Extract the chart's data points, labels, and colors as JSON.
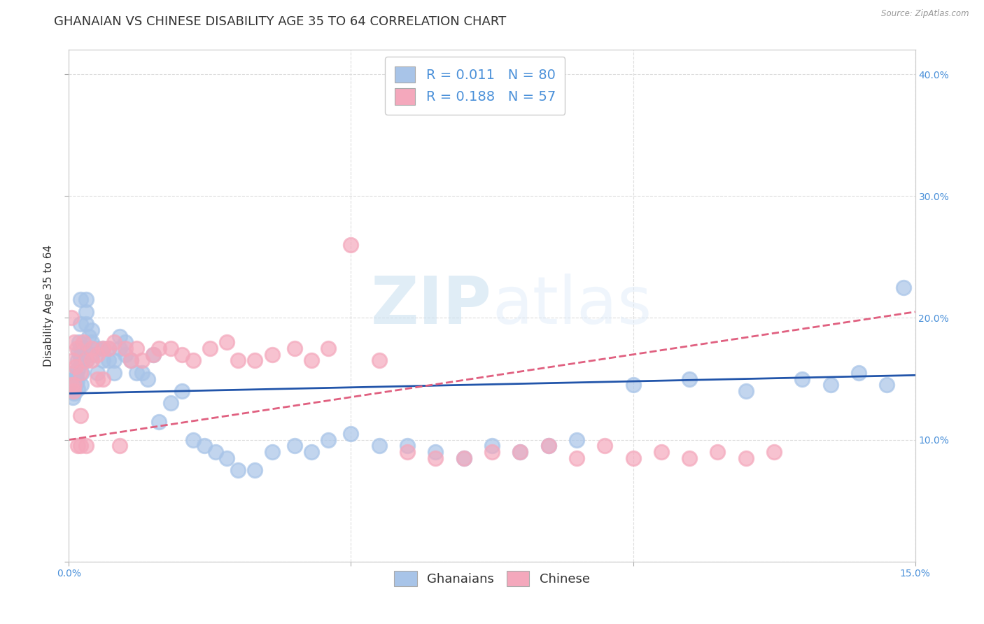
{
  "title": "GHANAIAN VS CHINESE DISABILITY AGE 35 TO 64 CORRELATION CHART",
  "source": "Source: ZipAtlas.com",
  "ylabel": "Disability Age 35 to 64",
  "xlim": [
    0.0,
    0.15
  ],
  "ylim": [
    0.0,
    0.42
  ],
  "ghanaian_color": "#a8c4e8",
  "chinese_color": "#f4a8bc",
  "trend_ghanaian_color": "#2255aa",
  "trend_chinese_color": "#e06080",
  "R_ghanaian": 0.011,
  "N_ghanaian": 80,
  "R_chinese": 0.188,
  "N_chinese": 57,
  "watermark_zip": "ZIP",
  "watermark_atlas": "atlas",
  "background_color": "#ffffff",
  "grid_color": "#dddddd",
  "title_fontsize": 13,
  "axis_label_fontsize": 11,
  "tick_fontsize": 10,
  "legend_fontsize": 14,
  "ghanaian_x": [
    0.0005,
    0.0006,
    0.0007,
    0.0008,
    0.0009,
    0.001,
    0.001,
    0.001,
    0.001,
    0.0012,
    0.0013,
    0.0014,
    0.0015,
    0.0015,
    0.0016,
    0.0017,
    0.0018,
    0.002,
    0.002,
    0.002,
    0.002,
    0.0022,
    0.0023,
    0.0024,
    0.0025,
    0.003,
    0.003,
    0.003,
    0.0032,
    0.0035,
    0.004,
    0.004,
    0.004,
    0.005,
    0.005,
    0.006,
    0.006,
    0.007,
    0.007,
    0.008,
    0.008,
    0.009,
    0.009,
    0.01,
    0.01,
    0.011,
    0.012,
    0.013,
    0.014,
    0.015,
    0.016,
    0.018,
    0.02,
    0.022,
    0.024,
    0.026,
    0.028,
    0.03,
    0.033,
    0.036,
    0.04,
    0.043,
    0.046,
    0.05,
    0.055,
    0.06,
    0.065,
    0.07,
    0.075,
    0.08,
    0.085,
    0.09,
    0.1,
    0.11,
    0.12,
    0.13,
    0.135,
    0.14,
    0.145,
    0.148
  ],
  "ghanaian_y": [
    0.14,
    0.145,
    0.135,
    0.14,
    0.15,
    0.142,
    0.138,
    0.148,
    0.155,
    0.145,
    0.152,
    0.148,
    0.142,
    0.158,
    0.165,
    0.172,
    0.18,
    0.175,
    0.168,
    0.195,
    0.215,
    0.145,
    0.155,
    0.165,
    0.175,
    0.195,
    0.205,
    0.215,
    0.165,
    0.185,
    0.17,
    0.18,
    0.19,
    0.155,
    0.175,
    0.165,
    0.175,
    0.175,
    0.165,
    0.155,
    0.165,
    0.175,
    0.185,
    0.17,
    0.18,
    0.165,
    0.155,
    0.155,
    0.15,
    0.17,
    0.115,
    0.13,
    0.14,
    0.1,
    0.095,
    0.09,
    0.085,
    0.075,
    0.075,
    0.09,
    0.095,
    0.09,
    0.1,
    0.105,
    0.095,
    0.095,
    0.09,
    0.085,
    0.095,
    0.09,
    0.095,
    0.1,
    0.145,
    0.15,
    0.14,
    0.15,
    0.145,
    0.155,
    0.145,
    0.225
  ],
  "chinese_x": [
    0.0004,
    0.0005,
    0.0007,
    0.0008,
    0.001,
    0.001,
    0.0012,
    0.0014,
    0.0016,
    0.002,
    0.002,
    0.002,
    0.0025,
    0.003,
    0.003,
    0.004,
    0.004,
    0.005,
    0.005,
    0.006,
    0.006,
    0.007,
    0.008,
    0.009,
    0.01,
    0.011,
    0.012,
    0.013,
    0.015,
    0.016,
    0.018,
    0.02,
    0.022,
    0.025,
    0.028,
    0.03,
    0.033,
    0.036,
    0.04,
    0.043,
    0.046,
    0.05,
    0.055,
    0.06,
    0.065,
    0.07,
    0.075,
    0.08,
    0.085,
    0.09,
    0.095,
    0.1,
    0.105,
    0.11,
    0.115,
    0.12,
    0.125
  ],
  "chinese_y": [
    0.145,
    0.2,
    0.165,
    0.14,
    0.145,
    0.18,
    0.16,
    0.175,
    0.095,
    0.095,
    0.12,
    0.155,
    0.18,
    0.165,
    0.095,
    0.175,
    0.165,
    0.15,
    0.17,
    0.15,
    0.175,
    0.175,
    0.18,
    0.095,
    0.175,
    0.165,
    0.175,
    0.165,
    0.17,
    0.175,
    0.175,
    0.17,
    0.165,
    0.175,
    0.18,
    0.165,
    0.165,
    0.17,
    0.175,
    0.165,
    0.175,
    0.26,
    0.165,
    0.09,
    0.085,
    0.085,
    0.09,
    0.09,
    0.095,
    0.085,
    0.095,
    0.085,
    0.09,
    0.085,
    0.09,
    0.085,
    0.09
  ]
}
